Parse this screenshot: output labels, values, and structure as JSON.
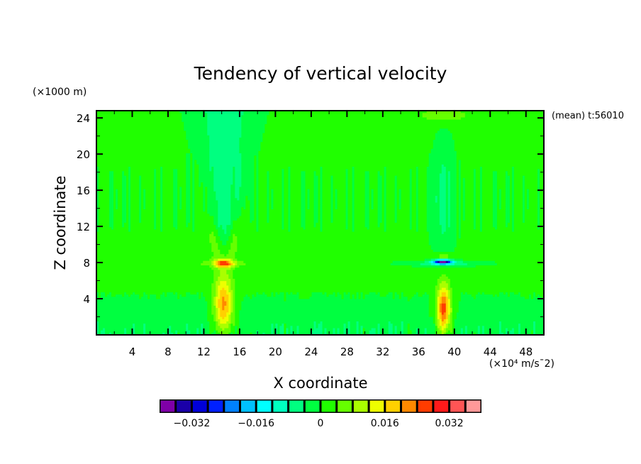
{
  "chart_data": {
    "type": "heatmap",
    "title": "Tendency of vertical velocity",
    "xlabel": "X coordinate",
    "ylabel": "Z coordinate",
    "y_unit_label": "(×1000 m)",
    "value_unit_label": "(×10⁴ m/s¯2)",
    "annotation": "(mean) t:56010",
    "xlim": [
      0,
      50
    ],
    "ylim": [
      0,
      24.8
    ],
    "x_ticks": [
      4,
      8,
      12,
      16,
      20,
      24,
      28,
      32,
      36,
      40,
      44,
      48
    ],
    "x_tick_labels": [
      "4",
      "8",
      "12",
      "16",
      "20",
      "24",
      "28",
      "32",
      "36",
      "40",
      "44",
      "48"
    ],
    "y_ticks": [
      4,
      8,
      12,
      16,
      20,
      24
    ],
    "y_tick_labels": [
      "4",
      "8",
      "12",
      "16",
      "20",
      "24"
    ],
    "colorbar": {
      "levels": [
        -0.04,
        -0.036,
        -0.032,
        -0.028,
        -0.024,
        -0.02,
        -0.016,
        -0.012,
        -0.008,
        -0.004,
        0,
        0.004,
        0.008,
        0.012,
        0.016,
        0.02,
        0.024,
        0.028,
        0.032,
        0.036,
        0.04
      ],
      "colors": [
        "#7f00a8",
        "#1a00a8",
        "#0000d8",
        "#0020ff",
        "#0080ff",
        "#00c0ff",
        "#00ffff",
        "#00ffc0",
        "#00ff80",
        "#00ff40",
        "#20ff00",
        "#66ff00",
        "#aaff00",
        "#eeff00",
        "#ffd000",
        "#ff8800",
        "#ff3c00",
        "#ff1a1a",
        "#ff5555",
        "#ff9999"
      ],
      "tick_values": [
        -0.032,
        -0.016,
        0,
        0.016,
        0.032
      ],
      "tick_labels": [
        "−0.032",
        "−0.016",
        "0",
        "0.016",
        "0.032"
      ]
    },
    "background_value": 0.001,
    "features": [
      {
        "name": "updraft-column-1",
        "x": 14.2,
        "z_min": 0.5,
        "z_max": 7.0,
        "peak_value": 0.022
      },
      {
        "name": "cap-1",
        "x": 14.2,
        "z": 7.9,
        "peak_value": 0.018
      },
      {
        "name": "upper-plume-1",
        "x": 14.3,
        "z_min": 8.5,
        "z_max": 24.8,
        "peak_value": -0.007
      },
      {
        "name": "updraft-column-2",
        "x": 38.8,
        "z_min": 0.5,
        "z_max": 7.0,
        "peak_value": 0.027
      },
      {
        "name": "cap-2",
        "x": 38.8,
        "z": 8.1,
        "peak_value": -0.036
      },
      {
        "name": "upper-plume-2",
        "x": 38.8,
        "z_min": 9,
        "z_max": 22,
        "peak_value": -0.006
      }
    ]
  }
}
